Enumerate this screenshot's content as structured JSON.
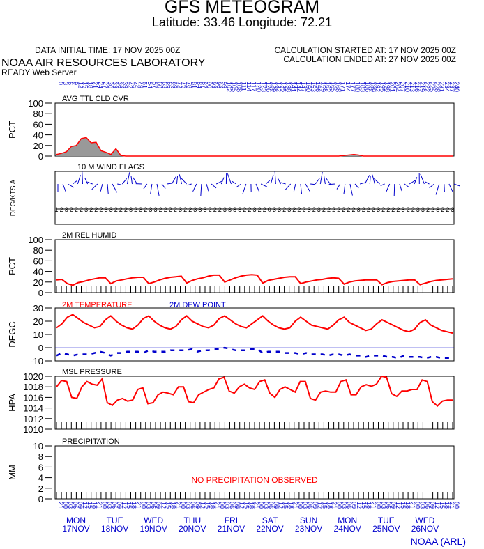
{
  "header": {
    "title": "GFS METEOGRAM",
    "location": "Latitude: 33.46 Longitude:  72.21",
    "data_initial_time": "DATA INITIAL TIME: 17 NOV 2025 00Z",
    "calc_started": "CALCULATION STARTED AT: 17 NOV 2025 00Z",
    "calc_ended": "CALCULATION ENDED AT: 27 NOV 2025 00Z",
    "org": "NOAA AIR RESOURCES LABORATORY",
    "server": "READY Web Server"
  },
  "footer": {
    "credit": "NOAA (ARL)"
  },
  "colors": {
    "red": "#ff0000",
    "blue": "#0000cc",
    "grey": "#999999",
    "axis": "#000000"
  },
  "time_axis": {
    "hour_labels": [
      "21",
      "00",
      "03",
      "06",
      "09",
      "12",
      "15",
      "18",
      "21",
      "00",
      "03",
      "06",
      "09",
      "12",
      "15",
      "18",
      "21",
      "00",
      "03",
      "06",
      "09",
      "12",
      "15",
      "18",
      "21",
      "00",
      "03",
      "06",
      "09",
      "12",
      "15",
      "18",
      "21",
      "00",
      "03",
      "06",
      "09",
      "12",
      "15",
      "18",
      "21",
      "00",
      "03",
      "06",
      "09",
      "12",
      "15",
      "18",
      "21",
      "00",
      "03",
      "06",
      "09",
      "12",
      "15",
      "18",
      "21",
      "00",
      "03",
      "06",
      "09",
      "12",
      "15",
      "18",
      "21",
      "00",
      "03",
      "06",
      "09",
      "12",
      "15",
      "18",
      "21",
      "00",
      "03",
      "06",
      "09",
      "12",
      "15",
      "18",
      "21",
      "00"
    ],
    "top_labels": [
      "0",
      "3",
      "6",
      "9",
      "12",
      "15",
      "18",
      "21",
      "24",
      "27",
      "30",
      "33",
      "36",
      "39",
      "42",
      "45",
      "48",
      "51",
      "54",
      "57",
      "60",
      "63",
      "66",
      "69",
      "72",
      "75",
      "78",
      "81",
      "84",
      "87",
      "90",
      "93",
      "96",
      "99",
      "102",
      "105",
      "108",
      "111",
      "114",
      "117",
      "120",
      "123",
      "126",
      "129",
      "132",
      "135",
      "138",
      "141",
      "144",
      "147",
      "150",
      "153",
      "156",
      "159",
      "162",
      "165",
      "168",
      "171",
      "174",
      "177",
      "180",
      "183",
      "186",
      "189",
      "192",
      "195",
      "198",
      "201",
      "204",
      "207",
      "210",
      "213",
      "216",
      "219",
      "222",
      "225",
      "228",
      "231",
      "234",
      "237",
      "240"
    ],
    "days": [
      {
        "day": "MON",
        "date": "17NOV"
      },
      {
        "day": "TUE",
        "date": "18NOV"
      },
      {
        "day": "WED",
        "date": "19NOV"
      },
      {
        "day": "THU",
        "date": "20NOV"
      },
      {
        "day": "FRI",
        "date": "21NOV"
      },
      {
        "day": "SAT",
        "date": "22NOV"
      },
      {
        "day": "SUN",
        "date": "23NOV"
      },
      {
        "day": "MON",
        "date": "24NOV"
      },
      {
        "day": "TUE",
        "date": "25NOV"
      },
      {
        "day": "WED",
        "date": "26NOV"
      }
    ]
  },
  "chart_data": [
    {
      "type": "area",
      "title": "AVG TTL CLD CVR",
      "ylabel": "PCT",
      "ylim": [
        0,
        100
      ],
      "yticks": [
        "0",
        "20",
        "40",
        "60",
        "80",
        "100"
      ],
      "x_hours": [
        0,
        3,
        6,
        9,
        12,
        15,
        18,
        21,
        24,
        27,
        30,
        33,
        36,
        39,
        42,
        45,
        48,
        51,
        54,
        57,
        60,
        63,
        66,
        69,
        72,
        75,
        78,
        81,
        84,
        87,
        90,
        93,
        96,
        99,
        102,
        105,
        108,
        111,
        114,
        117,
        120,
        123,
        126,
        129,
        132,
        135,
        138,
        141,
        144,
        147,
        150,
        153,
        156,
        159,
        162,
        165,
        168,
        171,
        174,
        177,
        180,
        183,
        186,
        189,
        192,
        195,
        198,
        201,
        204,
        207,
        210,
        213,
        216,
        219,
        222,
        225,
        228,
        231,
        234,
        237,
        240
      ],
      "values": [
        3,
        5,
        8,
        18,
        20,
        33,
        35,
        25,
        26,
        10,
        7,
        3,
        14,
        1,
        0,
        0,
        0,
        0,
        0,
        0,
        0,
        0,
        0,
        0,
        0,
        0,
        0,
        0,
        0,
        0,
        0,
        0,
        0,
        0,
        0,
        0,
        0,
        0,
        0,
        0,
        0,
        0,
        0,
        0,
        0,
        0,
        0,
        0,
        0,
        0,
        0,
        0,
        0,
        0,
        0,
        0,
        0,
        0,
        1,
        2,
        3,
        2,
        0,
        0,
        0,
        0,
        0,
        0,
        0,
        0,
        0,
        0,
        0,
        0,
        0,
        0,
        0,
        0,
        0,
        0,
        0
      ]
    },
    {
      "type": "wind_flags",
      "title": "10 M  WIND FLAGS",
      "ylabel": "DEG/KTS  A",
      "speed_kts": [
        "1",
        "2",
        "3",
        "2",
        "2",
        "2",
        "3",
        "2",
        "2",
        "2",
        "3",
        "3",
        "2",
        "2",
        "2",
        "3",
        "2",
        "3",
        "2",
        "3",
        "3",
        "2",
        "2",
        "2",
        "2",
        "3",
        "2",
        "2",
        "3",
        "3",
        "3",
        "2",
        "2",
        "2",
        "3",
        "3",
        "3",
        "3",
        "2",
        "2",
        "3",
        "2",
        "2",
        "0",
        "3",
        "3",
        "2",
        "3",
        "2",
        "2",
        "2",
        "3",
        "2",
        "3",
        "2",
        "2",
        "2",
        "2",
        "2",
        "2",
        "2",
        "3",
        "2",
        "2",
        "2",
        "3",
        "2",
        "2",
        "2",
        "2",
        "3",
        "2",
        "2",
        "3",
        "3",
        "2",
        "2",
        "3",
        "2",
        "2",
        "3"
      ]
    },
    {
      "type": "line",
      "title": "2M REL HUMID",
      "ylabel": "PCT",
      "ylim": [
        0,
        100
      ],
      "yticks": [
        "0",
        "20",
        "40",
        "60",
        "80",
        "100"
      ],
      "values": [
        24,
        25,
        17,
        14,
        19,
        21,
        24,
        26,
        28,
        28,
        17,
        22,
        24,
        26,
        28,
        29,
        29,
        17,
        20,
        24,
        27,
        29,
        30,
        31,
        18,
        23,
        26,
        28,
        31,
        33,
        33,
        20,
        24,
        28,
        31,
        33,
        34,
        33,
        18,
        23,
        25,
        27,
        29,
        30,
        30,
        17,
        20,
        22,
        24,
        25,
        27,
        28,
        27,
        16,
        20,
        22,
        23,
        24,
        24,
        24,
        15,
        19,
        21,
        22,
        23,
        24,
        24,
        15,
        18,
        21,
        23,
        24,
        25,
        26
      ]
    },
    {
      "type": "line",
      "title": "2M TEMPERATURE",
      "title2": "2M  DEW POINT",
      "ylabel": "DEGC",
      "ylim": [
        -10,
        30
      ],
      "yticks": [
        "-10",
        "0",
        "10",
        "20",
        "30"
      ],
      "series": [
        {
          "name": "2M TEMPERATURE",
          "values": [
            15,
            18,
            23,
            25,
            22,
            19,
            17,
            15,
            16,
            21,
            24,
            20,
            17,
            15,
            14,
            17,
            22,
            24,
            20,
            17,
            15,
            14,
            16,
            21,
            24,
            20,
            18,
            16,
            15,
            17,
            22,
            24,
            21,
            18,
            16,
            15,
            18,
            21,
            24,
            20,
            17,
            15,
            14,
            15,
            20,
            23,
            20,
            17,
            16,
            15,
            14,
            17,
            21,
            23,
            19,
            17,
            15,
            13,
            14,
            18,
            21,
            19,
            17,
            15,
            13,
            12,
            14,
            19,
            21,
            17,
            15,
            13,
            12,
            11
          ]
        },
        {
          "name": "2M  DEW POINT",
          "values": [
            -6,
            -4,
            -5,
            -6,
            -5,
            -5,
            -5,
            -4,
            -3,
            -4,
            -6,
            -4,
            -4,
            -3,
            -3,
            -3,
            -4,
            -2,
            -3,
            -3,
            -3,
            -2,
            -2,
            -2,
            -2,
            -1,
            -3,
            -2,
            -2,
            -1,
            -1,
            0,
            -1,
            -2,
            -2,
            -2,
            -1,
            -1,
            -4,
            -3,
            -3,
            -3,
            -4,
            -4,
            -4,
            -5,
            -4,
            -5,
            -5,
            -5,
            -6,
            -5,
            -5,
            -6,
            -5,
            -6,
            -6,
            -7,
            -6,
            -6,
            -6,
            -7,
            -7,
            -8,
            -6,
            -7,
            -7,
            -7,
            -8,
            -7,
            -7,
            -8,
            -8,
            -8
          ]
        }
      ]
    },
    {
      "type": "line",
      "title": "MSL PRESSURE",
      "ylabel": "HPA",
      "ylim": [
        1010,
        1020
      ],
      "yticks": [
        "1010",
        "1012",
        "1014",
        "1016",
        "1018",
        "1020"
      ],
      "values": [
        1018,
        1019.2,
        1019,
        1016,
        1015.8,
        1018,
        1019,
        1018.5,
        1018.3,
        1019.5,
        1015,
        1014.5,
        1015.5,
        1015.8,
        1015.3,
        1015.5,
        1017.5,
        1017.8,
        1014.8,
        1015,
        1016.5,
        1017,
        1016.8,
        1016.5,
        1018,
        1018,
        1015.2,
        1015,
        1016.5,
        1017,
        1017.5,
        1017.8,
        1019.5,
        1019.8,
        1017.2,
        1016.8,
        1018,
        1018.5,
        1017.8,
        1017.5,
        1019,
        1019.3,
        1016.8,
        1016,
        1017.5,
        1018,
        1017.5,
        1017,
        1019,
        1019,
        1015.8,
        1015.5,
        1017,
        1017.2,
        1017,
        1017,
        1019,
        1019.3,
        1016.5,
        1016.5,
        1018,
        1018.4,
        1018.1,
        1018.5,
        1020,
        1019.8,
        1016.7,
        1016.2,
        1017.2,
        1017.2,
        1017.5,
        1017.5,
        1019.3,
        1019,
        1015.2,
        1014.4,
        1015.3,
        1015.5,
        1015.5
      ]
    },
    {
      "type": "line",
      "title": "PRECIPITATION",
      "ylabel": "MM",
      "ylim": [
        0,
        10
      ],
      "yticks": [
        "0",
        "2",
        "4",
        "6",
        "8",
        "10"
      ],
      "message": "NO PRECIPITATION OBSERVED"
    }
  ]
}
